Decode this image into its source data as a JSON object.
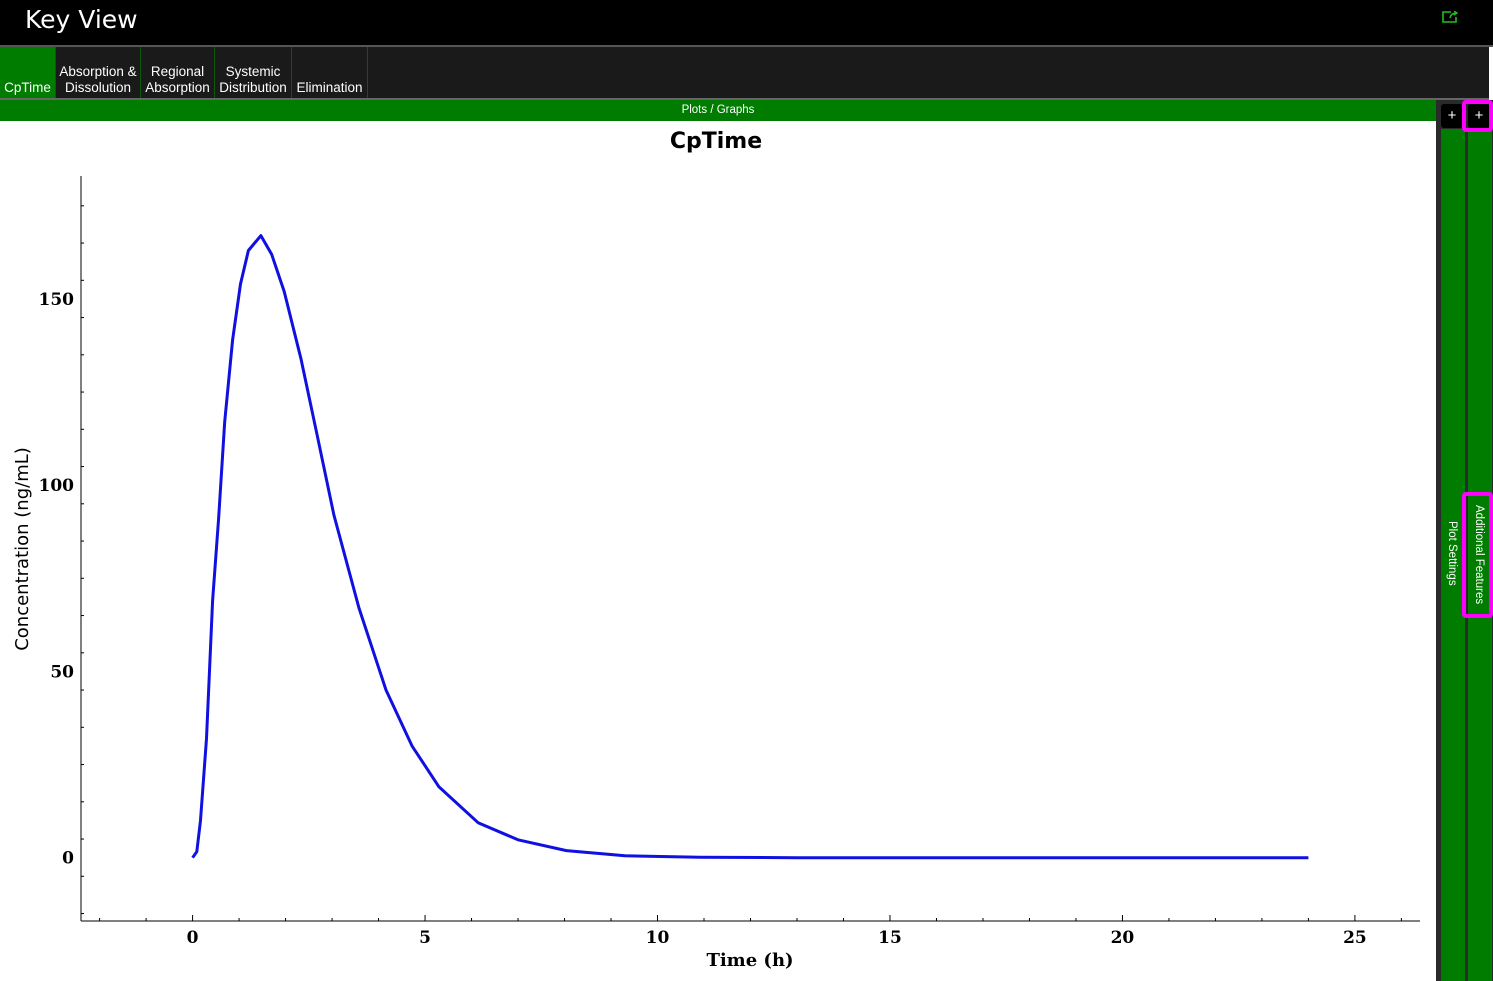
{
  "window": {
    "title": "Key View",
    "export_icon": "export-icon"
  },
  "tabs": [
    {
      "label": "CpTime",
      "active": true
    },
    {
      "label": "Absorption &\nDissolution"
    },
    {
      "label": "Regional\nAbsorption"
    },
    {
      "label": "Systemic\nDistribution"
    },
    {
      "label": "Elimination"
    }
  ],
  "plots_bar": "Plots / Graphs",
  "side_panels": {
    "plus": "+",
    "plot_settings": "Plot Settings",
    "additional_features": "Additional Features"
  },
  "colors": {
    "accent": "#007d00",
    "line": "#1010e0",
    "highlight": "#ff00ff"
  },
  "chart_data": {
    "type": "line",
    "title": "CpTime",
    "xlabel": "Time (h)",
    "ylabel": "Concentration (ng/mL)",
    "xlim": [
      -2.4,
      26.4
    ],
    "ylim": [
      -17,
      183
    ],
    "xticks": [
      0,
      5,
      10,
      15,
      20,
      25
    ],
    "yticks": [
      0,
      50,
      100,
      150
    ],
    "grid": false,
    "series": [
      {
        "x": [
          0,
          0.09,
          0.17,
          0.3,
          0.43,
          0.56,
          0.69,
          0.86,
          1.03,
          1.2,
          1.47,
          1.7,
          1.97,
          2.33,
          2.67,
          3.04,
          3.58,
          4.16,
          4.72,
          5.3,
          6.14,
          7.0,
          8.04,
          9.3,
          10.9,
          13,
          16,
          20,
          24
        ],
        "y": [
          0,
          1.6,
          10,
          32,
          69,
          91,
          117,
          139,
          154,
          163,
          167,
          162,
          152,
          134,
          114,
          92,
          67,
          45,
          30,
          19,
          9.4,
          4.8,
          1.9,
          0.5,
          0.1,
          0,
          0,
          0,
          0
        ]
      }
    ]
  }
}
